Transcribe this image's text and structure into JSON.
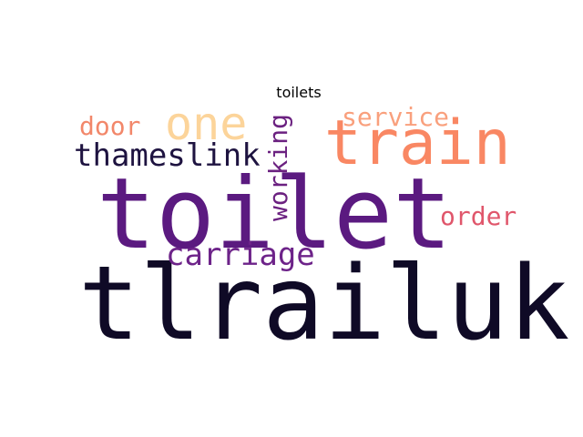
{
  "title": "toilets",
  "words": [
    {
      "id": "tlrailuk",
      "text": "tlrailuk",
      "color": "#0f0a26"
    },
    {
      "id": "toilet",
      "text": "toilet",
      "color": "#5b1a80"
    },
    {
      "id": "train",
      "text": "train",
      "color": "#f98763"
    },
    {
      "id": "one",
      "text": "one",
      "color": "#fcd49a"
    },
    {
      "id": "thameslink",
      "text": "thameslink",
      "color": "#1e1340"
    },
    {
      "id": "door",
      "text": "door",
      "color": "#f2876a"
    },
    {
      "id": "service",
      "text": "service",
      "color": "#f9a07d"
    },
    {
      "id": "working",
      "text": "working",
      "color": "#6b2180"
    },
    {
      "id": "carriage",
      "text": "carriage",
      "color": "#6d2389"
    },
    {
      "id": "order",
      "text": "order",
      "color": "#e0566b"
    }
  ]
}
